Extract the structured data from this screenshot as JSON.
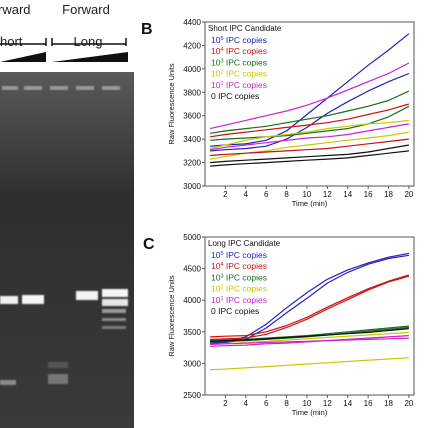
{
  "gel": {
    "lane_labels": [
      {
        "top": "rward",
        "bottom": "hort"
      },
      {
        "top": "Forward",
        "bottom": "Long"
      }
    ],
    "colors": {
      "background": "#3c3c3c",
      "band": "#f4f4f4"
    }
  },
  "panels": [
    {
      "letter": "B",
      "title": "Short IPC Candidate",
      "ylabel": "Raw Fluorescence Units",
      "xlabel": "Time (min)",
      "legend": [
        {
          "base": "10",
          "exp": "5",
          "suffix": " IPC copies",
          "color": "#2222bb"
        },
        {
          "base": "10",
          "exp": "4",
          "suffix": " IPC copies",
          "color": "#cc1111"
        },
        {
          "base": "10",
          "exp": "3",
          "suffix": " IPC copies",
          "color": "#1a6b1a"
        },
        {
          "base": "10",
          "exp": "2",
          "suffix": " IPC copies",
          "color": "#c8c800"
        },
        {
          "base": "10",
          "exp": "1",
          "suffix": " IPC copies",
          "color": "#cc22cc"
        },
        {
          "base": "0",
          "exp": "",
          "suffix": " IPC copies",
          "color": "#111111"
        }
      ]
    },
    {
      "letter": "C",
      "title": "Long IPC Candidate",
      "ylabel": "Raw Fluorescence Units",
      "xlabel": "Time (min)",
      "legend": [
        {
          "base": "10",
          "exp": "5",
          "suffix": " IPC copies",
          "color": "#2222bb"
        },
        {
          "base": "10",
          "exp": "4",
          "suffix": " IPC copies",
          "color": "#cc1111"
        },
        {
          "base": "10",
          "exp": "3",
          "suffix": " IPC copies",
          "color": "#1a6b1a"
        },
        {
          "base": "10",
          "exp": "2",
          "suffix": " IPC copies",
          "color": "#c8c800"
        },
        {
          "base": "10",
          "exp": "1",
          "suffix": " IPC copies",
          "color": "#cc22cc"
        },
        {
          "base": "0",
          "exp": "",
          "suffix": " IPC copies",
          "color": "#111111"
        }
      ]
    }
  ],
  "chart_data": [
    {
      "type": "line",
      "title": "Short IPC Candidate",
      "xlabel": "Time (min)",
      "ylabel": "Raw Fluorescence Units",
      "xlim": [
        0,
        20.5
      ],
      "ylim": [
        3000,
        4400
      ],
      "xticks": [
        2,
        4,
        6,
        8,
        10,
        12,
        14,
        16,
        18,
        20
      ],
      "yticks": [
        3000,
        3200,
        3400,
        3600,
        3800,
        4000,
        4200,
        4400
      ],
      "x": [
        0.5,
        2,
        4,
        6,
        8,
        10,
        12,
        14,
        16,
        18,
        20
      ],
      "series": [
        {
          "color": "#2222bb",
          "values": [
            3340,
            3350,
            3360,
            3390,
            3470,
            3610,
            3750,
            3890,
            4030,
            4160,
            4300
          ]
        },
        {
          "color": "#2222bb",
          "values": [
            3300,
            3310,
            3320,
            3340,
            3400,
            3500,
            3620,
            3720,
            3810,
            3890,
            3960
          ]
        },
        {
          "color": "#cc22cc",
          "values": [
            3490,
            3520,
            3560,
            3600,
            3640,
            3690,
            3750,
            3820,
            3890,
            3960,
            4050
          ]
        },
        {
          "color": "#1a6b1a",
          "values": [
            3450,
            3470,
            3490,
            3510,
            3540,
            3570,
            3600,
            3640,
            3680,
            3730,
            3810
          ]
        },
        {
          "color": "#1a6b1a",
          "values": [
            3390,
            3400,
            3410,
            3420,
            3430,
            3450,
            3470,
            3490,
            3530,
            3590,
            3680
          ]
        },
        {
          "color": "#cc1111",
          "values": [
            3420,
            3440,
            3460,
            3480,
            3500,
            3520,
            3540,
            3570,
            3610,
            3650,
            3700
          ]
        },
        {
          "color": "#c8c800",
          "values": [
            3320,
            3350,
            3390,
            3420,
            3440,
            3460,
            3490,
            3510,
            3530,
            3540,
            3560
          ]
        },
        {
          "color": "#cc22cc",
          "values": [
            3310,
            3330,
            3350,
            3370,
            3390,
            3410,
            3420,
            3440,
            3470,
            3500,
            3530
          ]
        },
        {
          "color": "#c8c800",
          "values": [
            3230,
            3250,
            3280,
            3300,
            3330,
            3350,
            3370,
            3390,
            3410,
            3430,
            3460
          ]
        },
        {
          "color": "#cc1111",
          "values": [
            3260,
            3270,
            3280,
            3290,
            3300,
            3310,
            3320,
            3340,
            3360,
            3380,
            3400
          ]
        },
        {
          "color": "#111111",
          "values": [
            3200,
            3210,
            3220,
            3230,
            3240,
            3250,
            3260,
            3270,
            3290,
            3320,
            3350
          ]
        },
        {
          "color": "#111111",
          "values": [
            3170,
            3180,
            3190,
            3200,
            3210,
            3220,
            3230,
            3240,
            3260,
            3280,
            3300
          ]
        }
      ]
    },
    {
      "type": "line",
      "title": "Long IPC Candidate",
      "xlabel": "Time (min)",
      "ylabel": "Raw Fluorescence Units",
      "xlim": [
        0,
        20.5
      ],
      "ylim": [
        2500,
        5000
      ],
      "xticks": [
        2,
        4,
        6,
        8,
        10,
        12,
        14,
        16,
        18,
        20
      ],
      "yticks": [
        2500,
        3000,
        3500,
        4000,
        4500,
        5000
      ],
      "x": [
        0.5,
        2,
        4,
        6,
        8,
        10,
        12,
        14,
        16,
        18,
        20
      ],
      "series": [
        {
          "color": "#2222bb",
          "values": [
            3330,
            3350,
            3420,
            3620,
            3880,
            4120,
            4330,
            4480,
            4590,
            4680,
            4740
          ]
        },
        {
          "color": "#2222bb",
          "values": [
            3320,
            3330,
            3380,
            3560,
            3800,
            4030,
            4270,
            4440,
            4570,
            4660,
            4710
          ]
        },
        {
          "color": "#cc1111",
          "values": [
            3420,
            3430,
            3440,
            3500,
            3600,
            3730,
            3890,
            4040,
            4180,
            4300,
            4400
          ]
        },
        {
          "color": "#cc1111",
          "values": [
            3380,
            3390,
            3400,
            3460,
            3570,
            3700,
            3860,
            4010,
            4160,
            4290,
            4380
          ]
        },
        {
          "color": "#1a6b1a",
          "values": [
            3360,
            3370,
            3380,
            3400,
            3420,
            3440,
            3470,
            3500,
            3530,
            3560,
            3590
          ]
        },
        {
          "color": "#1a6b1a",
          "values": [
            3340,
            3350,
            3360,
            3380,
            3400,
            3420,
            3450,
            3480,
            3510,
            3540,
            3570
          ]
        },
        {
          "color": "#111111",
          "values": [
            3350,
            3360,
            3370,
            3390,
            3410,
            3430,
            3450,
            3470,
            3490,
            3520,
            3550
          ]
        },
        {
          "color": "#c8c800",
          "values": [
            3300,
            3310,
            3330,
            3350,
            3370,
            3390,
            3410,
            3430,
            3450,
            3470,
            3490
          ]
        },
        {
          "color": "#cc22cc",
          "values": [
            3270,
            3280,
            3290,
            3310,
            3320,
            3340,
            3360,
            3380,
            3400,
            3420,
            3440
          ]
        },
        {
          "color": "#cc22cc",
          "values": [
            3300,
            3310,
            3320,
            3330,
            3340,
            3350,
            3360,
            3370,
            3380,
            3390,
            3400
          ]
        },
        {
          "color": "#c8c800",
          "values": [
            2900,
            2910,
            2930,
            2950,
            2970,
            2990,
            3010,
            3030,
            3050,
            3070,
            3090
          ]
        }
      ]
    }
  ]
}
